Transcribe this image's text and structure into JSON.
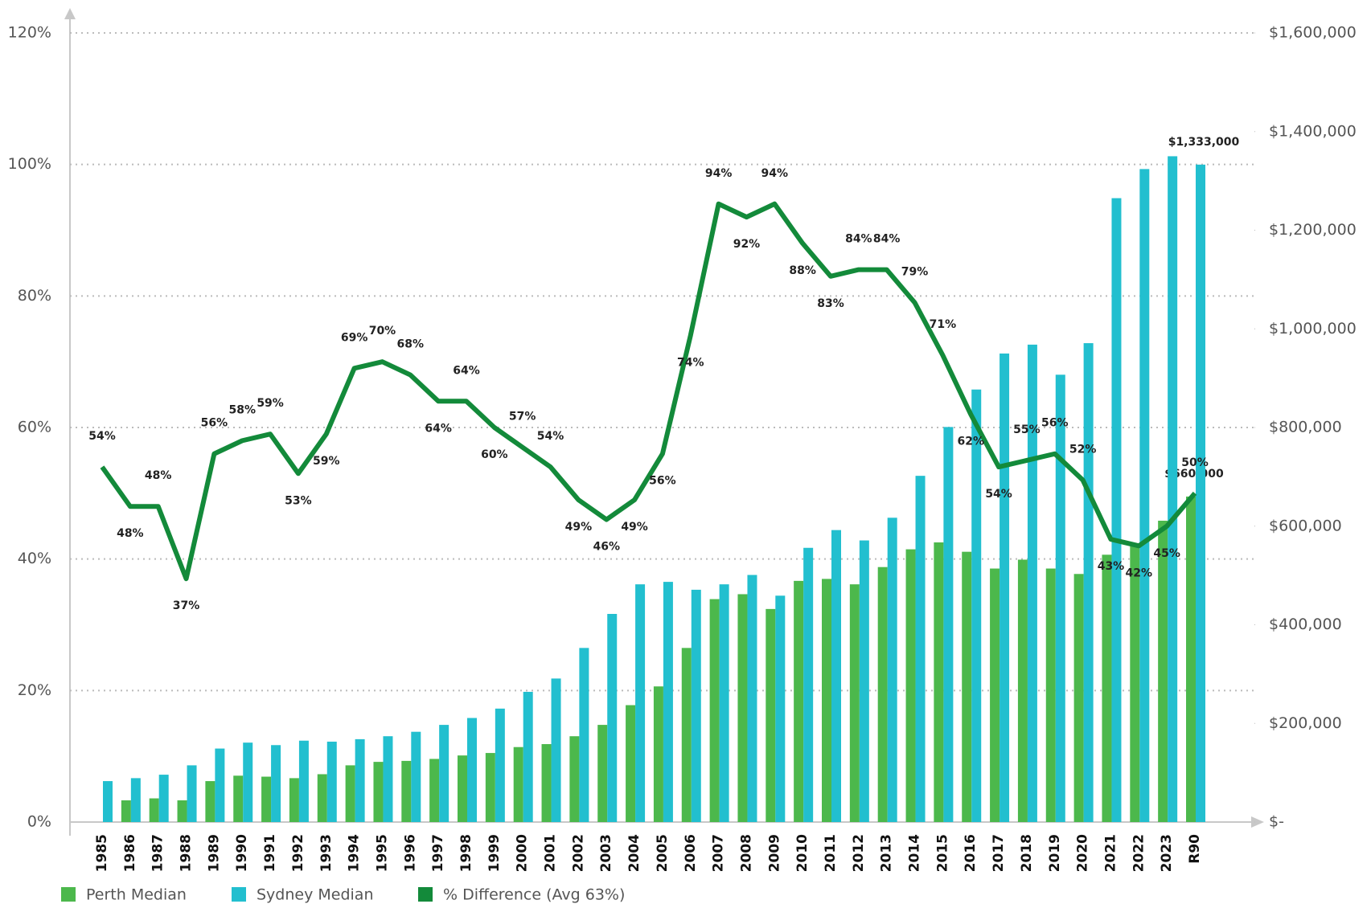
{
  "chart_data": {
    "type": "bar-line",
    "categories": [
      "1985",
      "1986",
      "1987",
      "1988",
      "1989",
      "1990",
      "1991",
      "1992",
      "1993",
      "1994",
      "1995",
      "1996",
      "1997",
      "1998",
      "1999",
      "2000",
      "2001",
      "2002",
      "2003",
      "2004",
      "2005",
      "2006",
      "2007",
      "2008",
      "2009",
      "2010",
      "2011",
      "2012",
      "2013",
      "2014",
      "2015",
      "2016",
      "2017",
      "2018",
      "2019",
      "2020",
      "2021",
      "2022",
      "2023",
      "R90"
    ],
    "series": [
      {
        "name": "Perth Median",
        "color": "#4cb84c",
        "axis": "y2",
        "kind": "bar",
        "values": [
          null,
          44000,
          48000,
          44000,
          83000,
          94000,
          92000,
          89000,
          97000,
          115000,
          122000,
          124000,
          128000,
          135000,
          140000,
          152000,
          158000,
          174000,
          197000,
          237000,
          275000,
          353000,
          452000,
          462000,
          432000,
          489000,
          493000,
          482000,
          517000,
          553000,
          567000,
          548000,
          514000,
          532000,
          514000,
          503000,
          542000,
          560000,
          611000,
          660000
        ],
        "value_labels": [
          null,
          null,
          null,
          null,
          null,
          null,
          null,
          null,
          null,
          null,
          null,
          null,
          null,
          null,
          null,
          null,
          null,
          null,
          null,
          null,
          null,
          null,
          null,
          null,
          null,
          null,
          null,
          null,
          null,
          null,
          null,
          null,
          null,
          null,
          null,
          null,
          null,
          null,
          null,
          "$660,000"
        ]
      },
      {
        "name": "Sydney Median",
        "color": "#22bfcf",
        "axis": "y2",
        "kind": "bar",
        "values": [
          83000,
          89000,
          96000,
          115000,
          149000,
          161000,
          156000,
          165000,
          163000,
          168000,
          174000,
          183000,
          197000,
          211000,
          230000,
          264000,
          291000,
          353000,
          422000,
          482000,
          487000,
          471000,
          482000,
          501000,
          459000,
          556000,
          592000,
          571000,
          617000,
          702000,
          801000,
          877000,
          950000,
          968000,
          907000,
          971000,
          1265000,
          1324000,
          1350000,
          1333000
        ],
        "value_labels": [
          null,
          null,
          null,
          null,
          null,
          null,
          null,
          null,
          null,
          null,
          null,
          null,
          null,
          null,
          null,
          null,
          null,
          null,
          null,
          null,
          null,
          null,
          null,
          null,
          null,
          null,
          null,
          null,
          null,
          null,
          null,
          null,
          null,
          null,
          null,
          null,
          null,
          null,
          null,
          "$1,333,000"
        ]
      },
      {
        "name": "% Difference (Avg 63%)",
        "color": "#138a3a",
        "kind": "line",
        "values": [
          54,
          48,
          48,
          37,
          56,
          58,
          59,
          53,
          59,
          69,
          70,
          68,
          64,
          64,
          60,
          57,
          54,
          49,
          46,
          49,
          56,
          74,
          94,
          92,
          94,
          88,
          83,
          84,
          84,
          79,
          71,
          62,
          54,
          55,
          56,
          52,
          43,
          42,
          45,
          50
        ],
        "value_labels": [
          "54%",
          "48%",
          "48%",
          "37%",
          "56%",
          "58%",
          "59%",
          "53%",
          "59%",
          "69%",
          "70%",
          "68%",
          "64%",
          "64%",
          "60%",
          "57%",
          "54%",
          "49%",
          "46%",
          "49%",
          "56%",
          "74%",
          "94%",
          "92%",
          "94%",
          "88%",
          "83%",
          "84%",
          "84%",
          "79%",
          "71%",
          "62%",
          "54%",
          "55%",
          "56%",
          "52%",
          "43%",
          "42%",
          "45%",
          "50%"
        ]
      }
    ],
    "ylim": [
      0,
      120
    ],
    "yticks": [
      {
        "value": 0,
        "label": "0%"
      },
      {
        "value": 20,
        "label": "20%"
      },
      {
        "value": 40,
        "label": "40%"
      },
      {
        "value": 60,
        "label": "60%"
      },
      {
        "value": 80,
        "label": "80%"
      },
      {
        "value": 100,
        "label": "100%"
      },
      {
        "value": 120,
        "label": "120%"
      }
    ],
    "y2lim": [
      0,
      1600000
    ],
    "y2ticks": [
      {
        "value": 0,
        "label": "$-"
      },
      {
        "value": 200000,
        "label": "$200,000"
      },
      {
        "value": 400000,
        "label": "$400,000"
      },
      {
        "value": 600000,
        "label": "$600,000"
      },
      {
        "value": 800000,
        "label": "$800,000"
      },
      {
        "value": 1000000,
        "label": "$1,000,000"
      },
      {
        "value": 1200000,
        "label": "$1,200,000"
      },
      {
        "value": 1400000,
        "label": "$1,400,000"
      },
      {
        "value": 1600000,
        "label": "$1,600,000"
      }
    ],
    "grid": true,
    "legend": "bottom-left"
  }
}
